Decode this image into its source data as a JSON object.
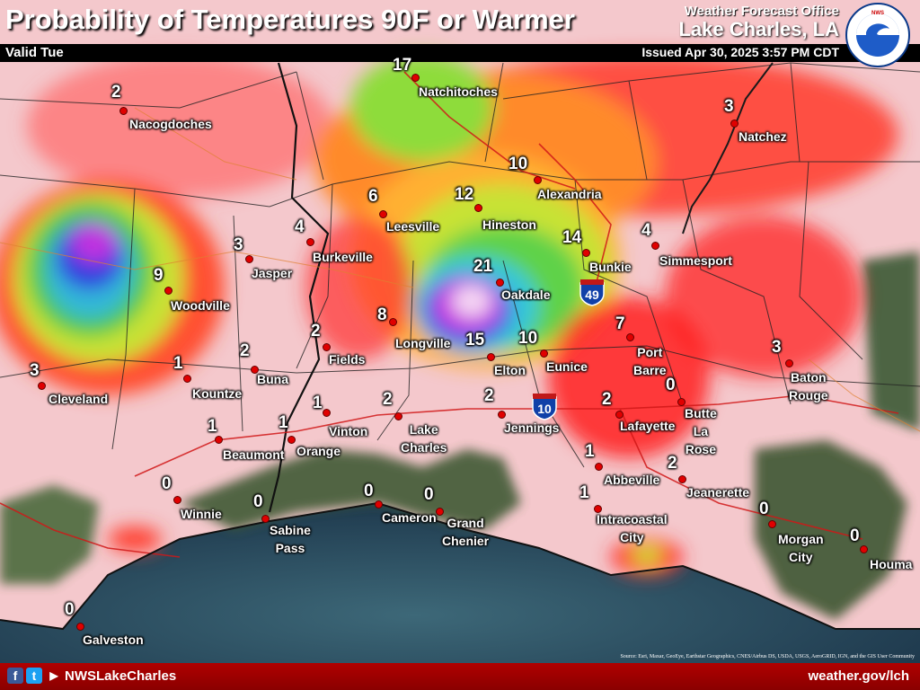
{
  "header": {
    "title": "Probability of Temperatures 90F or Warmer",
    "valid": "Valid Tue",
    "office_line1": "Weather Forecast Office",
    "office_line2": "Lake Charles, LA",
    "issued": "Issued Apr 30, 2025 3:57 PM CDT",
    "logo_text": "NATIONAL WEATHER SERVICE"
  },
  "footer": {
    "handle": "NWSLakeCharles",
    "website": "weather.gov/lch",
    "icons": [
      "facebook-icon",
      "twitter-icon",
      "youtube-icon"
    ],
    "credit": "Source: Esri, Maxar, GeoEye, Earthstar Geographics, CNES/Airbus DS, USDA, USGS, AeroGRID, IGN, and the GIS User Community"
  },
  "highways": [
    {
      "label": "49"
    },
    {
      "label": "10"
    }
  ],
  "cities": [
    {
      "name": "Natchitoches",
      "value": "17"
    },
    {
      "name": "Nacogdoches",
      "value": "2"
    },
    {
      "name": "Natchez",
      "value": "3"
    },
    {
      "name": "Alexandria",
      "value": "10"
    },
    {
      "name": "Hineston",
      "value": "12"
    },
    {
      "name": "Leesville",
      "value": "6"
    },
    {
      "name": "Burkeville",
      "value": "4"
    },
    {
      "name": "Jasper",
      "value": "3"
    },
    {
      "name": "Woodville",
      "value": "9"
    },
    {
      "name": "Bunkie",
      "value": "14"
    },
    {
      "name": "Simmesport",
      "value": "4"
    },
    {
      "name": "Oakdale",
      "value": "21"
    },
    {
      "name": "Longville",
      "value": "8"
    },
    {
      "name": "Fields",
      "value": "2"
    },
    {
      "name": "Elton",
      "value": "15"
    },
    {
      "name": "Eunice",
      "value": "10"
    },
    {
      "name": "Port\nBarre",
      "value": "7"
    },
    {
      "name": "Baton\nRouge",
      "value": "3"
    },
    {
      "name": "Cleveland",
      "value": "3"
    },
    {
      "name": "Kountze",
      "value": "1"
    },
    {
      "name": "Buna",
      "value": "2"
    },
    {
      "name": "Vinton",
      "value": "1"
    },
    {
      "name": "Lake\nCharles",
      "value": "2"
    },
    {
      "name": "Jennings",
      "value": "2"
    },
    {
      "name": "Lafayette",
      "value": "2"
    },
    {
      "name": "Butte\nLa\nRose",
      "value": "0"
    },
    {
      "name": "Beaumont",
      "value": "1"
    },
    {
      "name": "Orange",
      "value": "1"
    },
    {
      "name": "Abbeville",
      "value": "1"
    },
    {
      "name": "Jeanerette",
      "value": "2"
    },
    {
      "name": "Winnie",
      "value": "0"
    },
    {
      "name": "Sabine\nPass",
      "value": "0"
    },
    {
      "name": "Cameron",
      "value": "0"
    },
    {
      "name": "Grand\nChenier",
      "value": "0"
    },
    {
      "name": "Intracoastal\nCity",
      "value": "1"
    },
    {
      "name": "Morgan\nCity",
      "value": "0"
    },
    {
      "name": "Houma",
      "value": "0"
    },
    {
      "name": "Galveston",
      "value": "0"
    }
  ]
}
